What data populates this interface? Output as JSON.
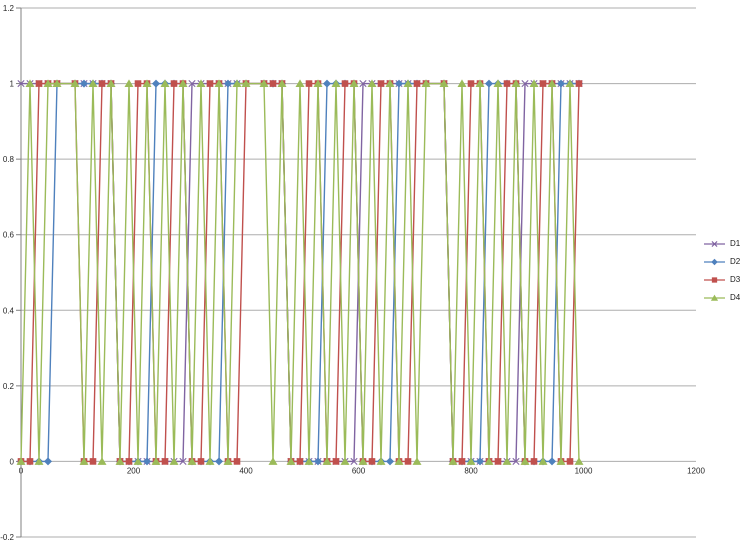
{
  "chart_data": {
    "type": "line",
    "title": "",
    "xlabel": "",
    "ylabel": "",
    "xlim": [
      0,
      1200
    ],
    "ylim": [
      -0.2,
      1.2
    ],
    "x_tick_values": [
      0,
      200,
      400,
      600,
      800,
      1000,
      1200
    ],
    "x_tick_labels": [
      "0",
      "200",
      "400",
      "600",
      "800",
      "1000",
      "1200"
    ],
    "y_tick_values": [
      -0.2,
      0,
      0.2,
      0.4,
      0.6,
      0.8,
      1,
      1.2
    ],
    "y_tick_labels": [
      "-0.2",
      "0",
      "0.2",
      "0.4",
      "0.6",
      "0.8",
      "1",
      "1.2"
    ],
    "grid": "horizontal-only",
    "legend_position": "right-middle",
    "note": "Four binary square-wave signals sampled every 16 x-units in four bursts (pauses near x=64-96, 400-432, 720-752 where all signals hold at 1). Per-sample y value of each series = selected bit of counter_values: D1=bit3, D2=bit2, D3=bit1, D4=bit0.",
    "x_values": [
      0,
      16,
      32,
      48,
      64,
      96,
      112,
      128,
      144,
      160,
      176,
      192,
      208,
      224,
      240,
      256,
      272,
      288,
      304,
      320,
      336,
      352,
      368,
      384,
      400,
      432,
      448,
      464,
      480,
      496,
      512,
      528,
      544,
      560,
      576,
      592,
      608,
      624,
      640,
      656,
      672,
      688,
      704,
      720,
      752,
      768,
      784,
      800,
      816,
      832,
      848,
      864,
      880,
      896,
      912,
      928,
      944,
      960,
      976,
      992
    ],
    "counter_values": [
      8,
      9,
      10,
      11,
      15,
      15,
      12,
      13,
      14,
      15,
      0,
      1,
      2,
      3,
      4,
      5,
      6,
      7,
      8,
      9,
      10,
      11,
      12,
      13,
      15,
      15,
      14,
      15,
      0,
      1,
      2,
      3,
      4,
      5,
      6,
      7,
      8,
      9,
      10,
      11,
      12,
      13,
      14,
      15,
      15,
      0,
      1,
      2,
      3,
      4,
      5,
      6,
      7,
      8,
      9,
      10,
      11,
      12,
      13,
      14
    ],
    "series": [
      {
        "name": "D1",
        "color": "#8064A2",
        "marker": "x-cross",
        "bit": 3
      },
      {
        "name": "D2",
        "color": "#4F81BD",
        "marker": "diamond",
        "bit": 2
      },
      {
        "name": "D3",
        "color": "#C0504D",
        "marker": "square",
        "bit": 1
      },
      {
        "name": "D4",
        "color": "#9BBB59",
        "marker": "triangle",
        "bit": 0
      }
    ],
    "axis_color": "#808080",
    "gridline_color": "#ADADAD",
    "background_color": "#FFFFFF"
  }
}
